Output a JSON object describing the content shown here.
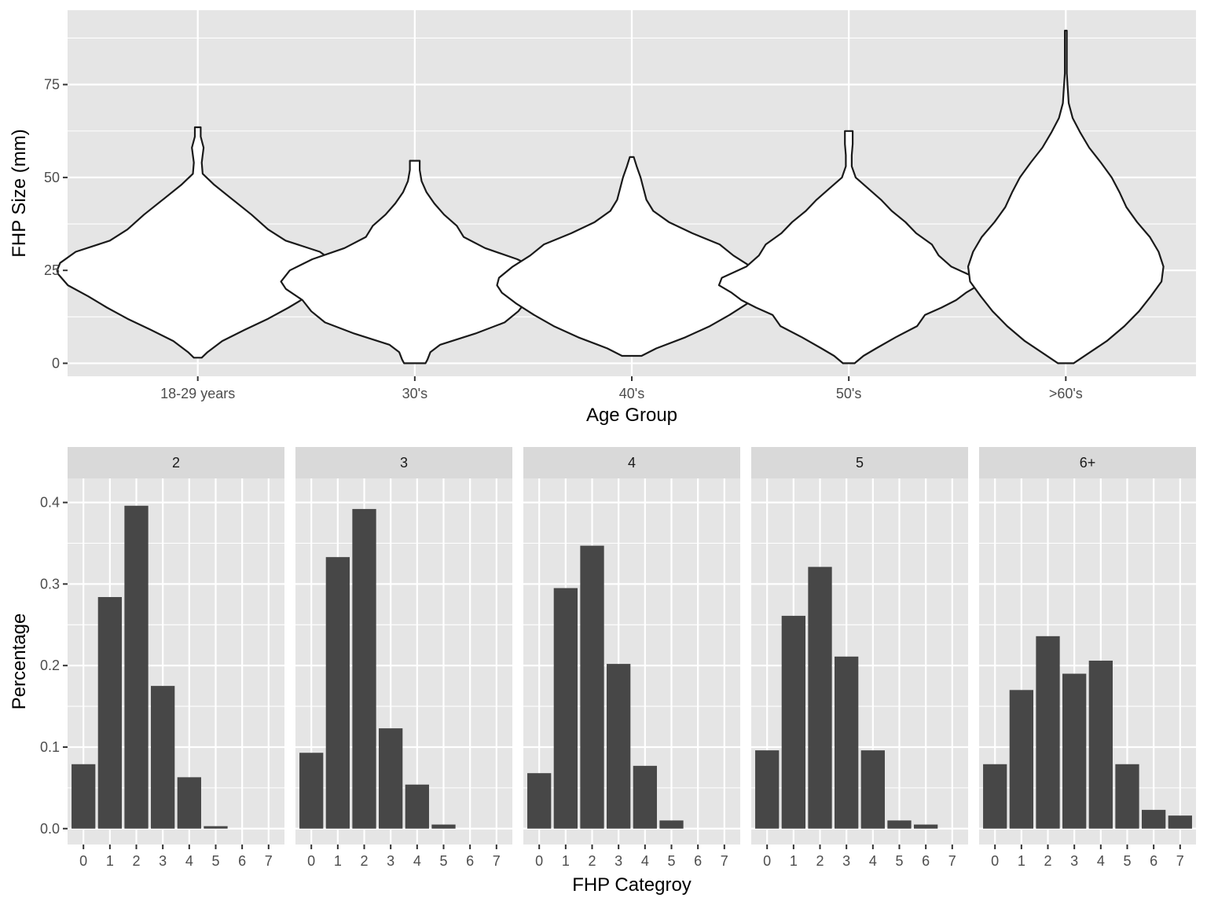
{
  "chart_data": [
    {
      "type": "violin",
      "xlabel": "Age Group",
      "ylabel": "FHP Size (mm)",
      "categories": [
        "18-29 years",
        "30's",
        "40's",
        "50's",
        ">60's"
      ],
      "ylim": [
        -3.5,
        95
      ],
      "yticks": [
        0,
        25,
        50,
        75
      ],
      "grid": true,
      "fill_color": "#ffffff",
      "stroke_color": "#1a1a1a",
      "panel_bg": "#e5e5e5",
      "violins": [
        {
          "name": "18-29 years",
          "y": [
            1.5,
            3,
            6,
            9,
            12,
            15,
            18,
            21,
            24,
            25,
            27,
            30,
            33,
            36,
            40,
            44,
            48,
            51,
            54,
            58,
            61,
            63.5
          ],
          "halfwidth": [
            0.04,
            0.1,
            0.25,
            0.48,
            0.72,
            0.93,
            1.12,
            1.33,
            1.43,
            1.44,
            1.41,
            1.25,
            0.9,
            0.72,
            0.55,
            0.36,
            0.17,
            0.05,
            0.04,
            0.06,
            0.03,
            0.03
          ]
        },
        {
          "name": "30's",
          "y": [
            0,
            1,
            3,
            5,
            8,
            11,
            14,
            17,
            20,
            22,
            25,
            28,
            31,
            34,
            37,
            40,
            43,
            46,
            49,
            52,
            54.5
          ],
          "halfwidth": [
            0.11,
            0.13,
            0.16,
            0.26,
            0.62,
            0.92,
            1.06,
            1.15,
            1.32,
            1.37,
            1.28,
            1.05,
            0.72,
            0.5,
            0.43,
            0.3,
            0.2,
            0.12,
            0.07,
            0.05,
            0.05
          ]
        },
        {
          "name": "40's",
          "y": [
            2,
            4,
            7,
            10,
            13,
            16,
            19,
            21,
            23,
            26,
            29,
            32,
            35,
            38,
            41,
            44,
            47,
            50,
            53,
            55.5
          ],
          "halfwidth": [
            0.1,
            0.25,
            0.55,
            0.8,
            1.0,
            1.18,
            1.33,
            1.38,
            1.36,
            1.22,
            1.04,
            0.9,
            0.62,
            0.38,
            0.22,
            0.15,
            0.12,
            0.09,
            0.05,
            0.02
          ]
        },
        {
          "name": "50's",
          "y": [
            0,
            2,
            4,
            7,
            10,
            13,
            15,
            17,
            19,
            21,
            23,
            26,
            29,
            32,
            35,
            38,
            41,
            44,
            47,
            50,
            53,
            56,
            59,
            62.5
          ],
          "halfwidth": [
            0.06,
            0.15,
            0.28,
            0.48,
            0.7,
            0.78,
            0.95,
            1.1,
            1.2,
            1.33,
            1.3,
            1.05,
            0.92,
            0.85,
            0.69,
            0.58,
            0.44,
            0.33,
            0.2,
            0.07,
            0.03,
            0.03,
            0.04,
            0.04
          ]
        },
        {
          "name": ">60's",
          "y": [
            0,
            3,
            6,
            10,
            14,
            18,
            22,
            26,
            30,
            34,
            38,
            42,
            46,
            50,
            54,
            58,
            62,
            66,
            70,
            74,
            78,
            82,
            86,
            89.5
          ],
          "halfwidth": [
            0.08,
            0.25,
            0.42,
            0.6,
            0.75,
            0.87,
            0.98,
            1.0,
            0.95,
            0.86,
            0.73,
            0.62,
            0.55,
            0.47,
            0.36,
            0.24,
            0.15,
            0.07,
            0.03,
            0.02,
            0.01,
            0.01,
            0.01,
            0.01
          ]
        }
      ]
    },
    {
      "type": "bar",
      "facets_by": "Age Group",
      "xlabel": "FHP Categroy",
      "ylabel": "Percentage",
      "categories": [
        "0",
        "1",
        "2",
        "3",
        "4",
        "5",
        "6",
        "7"
      ],
      "ylim": [
        -0.0195,
        0.4295
      ],
      "yticks": [
        0.0,
        0.1,
        0.2,
        0.3,
        0.4
      ],
      "ytick_labels": [
        "0.0",
        "0.1",
        "0.2",
        "0.3",
        "0.4"
      ],
      "grid": true,
      "bar_color": "#474747",
      "panel_bg": "#e5e5e5",
      "strip_bg": "#d9d9d9",
      "facets": [
        {
          "label": "2",
          "values": [
            0.079,
            0.284,
            0.396,
            0.175,
            0.063,
            0.003,
            0,
            0
          ]
        },
        {
          "label": "3",
          "values": [
            0.093,
            0.333,
            0.392,
            0.123,
            0.054,
            0.005,
            0,
            0
          ]
        },
        {
          "label": "4",
          "values": [
            0.068,
            0.295,
            0.347,
            0.202,
            0.077,
            0.01,
            0,
            0
          ]
        },
        {
          "label": "5",
          "values": [
            0.096,
            0.261,
            0.321,
            0.211,
            0.096,
            0.01,
            0.005,
            0
          ]
        },
        {
          "label": "6+",
          "values": [
            0.079,
            0.17,
            0.236,
            0.19,
            0.206,
            0.079,
            0.023,
            0.016
          ]
        }
      ]
    }
  ]
}
